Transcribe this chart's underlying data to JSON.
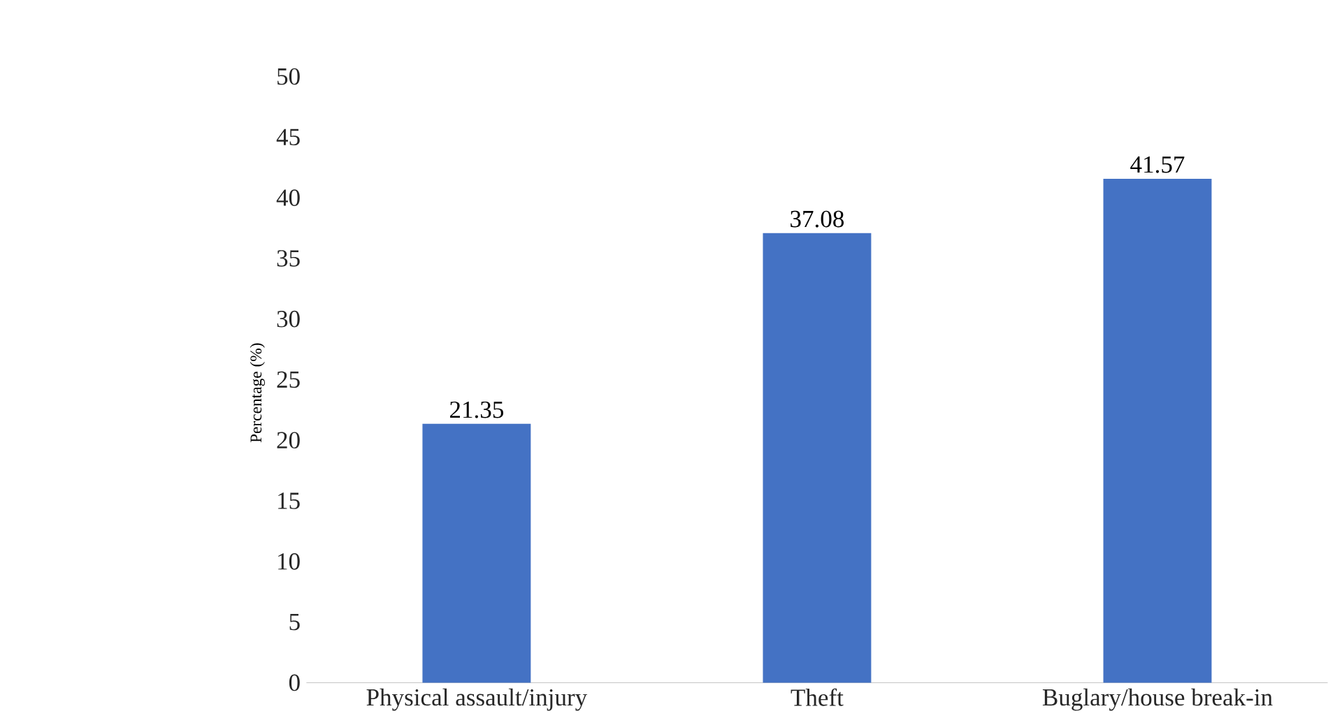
{
  "chart_data": {
    "type": "bar",
    "ylabel": "Percentage (%)",
    "categories": [
      "Physical assault/injury",
      "Theft",
      "Buglary/house break-in"
    ],
    "values": [
      21.35,
      37.08,
      41.57
    ],
    "color": "#4472c4",
    "ylim": [
      0,
      50
    ],
    "yticks": [
      0,
      5,
      10,
      15,
      20,
      25,
      30,
      35,
      40,
      45,
      50
    ],
    "data_labels": true
  }
}
